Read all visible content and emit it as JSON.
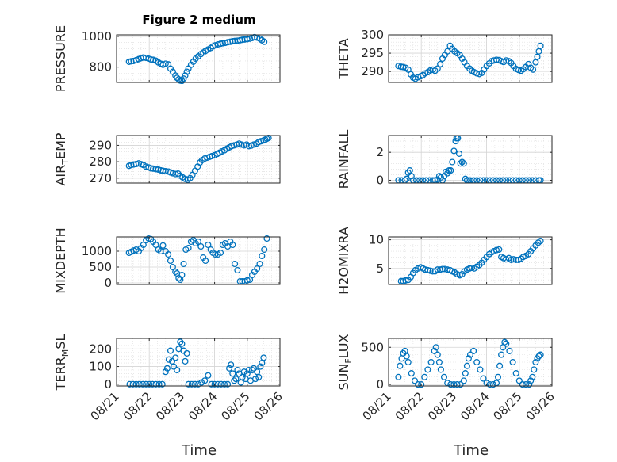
{
  "figure": {
    "title": "Figure 2 medium",
    "xlabel": "Time",
    "marker_color": "#0072BD",
    "axes_color": "#262626",
    "grid_color": "#dcdcdc"
  },
  "chart_data": [
    {
      "type": "scatter",
      "title": "Figure 2 medium",
      "ylabel": "PRESSURE",
      "ylabel_sub": "",
      "ylim": [
        700,
        1010
      ],
      "yticks": [
        800,
        1000
      ],
      "ytick_labels": [
        "800",
        "1000"
      ],
      "xlim": [
        0,
        5
      ],
      "xticks": [
        0,
        1,
        2,
        3,
        4,
        5
      ],
      "xtick_labels": [],
      "grid": true,
      "x": [
        0.38,
        0.45,
        0.52,
        0.6,
        0.68,
        0.75,
        0.82,
        0.9,
        0.98,
        1.05,
        1.12,
        1.2,
        1.28,
        1.35,
        1.42,
        1.5,
        1.58,
        1.65,
        1.72,
        1.8,
        1.85,
        1.9,
        1.95,
        2.0,
        2.05,
        2.1,
        2.15,
        2.2,
        2.28,
        2.35,
        2.42,
        2.5,
        2.58,
        2.65,
        2.72,
        2.8,
        2.88,
        2.95,
        3.02,
        3.1,
        3.18,
        3.25,
        3.32,
        3.4,
        3.48,
        3.55,
        3.62,
        3.7,
        3.78,
        3.85,
        3.92,
        4.0,
        4.08,
        4.15,
        4.22,
        4.3,
        4.38,
        4.45,
        4.52
      ],
      "y": [
        835,
        838,
        840,
        845,
        852,
        858,
        862,
        860,
        855,
        850,
        848,
        842,
        830,
        822,
        815,
        822,
        818,
        790,
        770,
        745,
        730,
        720,
        712,
        710,
        725,
        745,
        770,
        790,
        815,
        835,
        855,
        870,
        885,
        895,
        905,
        915,
        925,
        935,
        942,
        948,
        952,
        955,
        958,
        962,
        965,
        968,
        970,
        972,
        975,
        978,
        980,
        982,
        985,
        990,
        995,
        992,
        985,
        975,
        965
      ]
    },
    {
      "type": "scatter",
      "title": "",
      "ylabel": "THETA",
      "ylabel_sub": "",
      "ylim": [
        287,
        300
      ],
      "yticks": [
        290,
        295,
        300
      ],
      "ytick_labels": [
        "290",
        "295",
        "300"
      ],
      "xlim": [
        0,
        5
      ],
      "xticks": [
        0,
        1,
        2,
        3,
        4,
        5
      ],
      "xtick_labels": [],
      "grid": true,
      "x": [
        0.3,
        0.38,
        0.45,
        0.52,
        0.6,
        0.68,
        0.75,
        0.82,
        0.9,
        0.98,
        1.05,
        1.12,
        1.2,
        1.28,
        1.35,
        1.42,
        1.5,
        1.58,
        1.65,
        1.72,
        1.8,
        1.88,
        1.95,
        2.02,
        2.1,
        2.18,
        2.25,
        2.32,
        2.4,
        2.48,
        2.55,
        2.62,
        2.7,
        2.78,
        2.85,
        2.92,
        3.0,
        3.08,
        3.15,
        3.22,
        3.3,
        3.38,
        3.45,
        3.52,
        3.6,
        3.68,
        3.75,
        3.82,
        3.9,
        3.98,
        4.05,
        4.12,
        4.2,
        4.28,
        4.35,
        4.42,
        4.5,
        4.55,
        4.6,
        4.65
      ],
      "y": [
        291.5,
        291.3,
        291.2,
        291.0,
        290.5,
        289.2,
        288.3,
        288.0,
        288.4,
        288.7,
        289.0,
        289.5,
        289.8,
        290.3,
        290.5,
        290.2,
        290.8,
        292.0,
        293.5,
        294.5,
        295.5,
        297.0,
        296.2,
        295.5,
        295.0,
        294.5,
        293.5,
        292.5,
        291.5,
        290.8,
        290.2,
        289.8,
        289.5,
        289.3,
        289.6,
        290.5,
        291.5,
        292.2,
        292.8,
        293.0,
        293.2,
        293.1,
        292.8,
        292.6,
        293.0,
        292.8,
        292.3,
        291.5,
        290.7,
        290.4,
        290.2,
        290.6,
        291.2,
        292.0,
        291.0,
        290.5,
        292.5,
        294.0,
        295.5,
        297.0
      ]
    },
    {
      "type": "scatter",
      "title": "",
      "ylabel": "AIR",
      "ylabel_sub": "T",
      "ylabel_suffix": "EMP",
      "ylim": [
        267,
        296
      ],
      "yticks": [
        270,
        280,
        290
      ],
      "ytick_labels": [
        "270",
        "280",
        "290"
      ],
      "xlim": [
        0,
        5
      ],
      "xticks": [
        0,
        1,
        2,
        3,
        4,
        5
      ],
      "xtick_labels": [],
      "grid": true,
      "x": [
        0.38,
        0.45,
        0.52,
        0.6,
        0.68,
        0.75,
        0.82,
        0.9,
        0.98,
        1.05,
        1.12,
        1.2,
        1.28,
        1.35,
        1.42,
        1.5,
        1.58,
        1.65,
        1.72,
        1.8,
        1.88,
        1.95,
        2.02,
        2.1,
        2.18,
        2.25,
        2.32,
        2.4,
        2.48,
        2.55,
        2.62,
        2.7,
        2.78,
        2.85,
        2.92,
        3.0,
        3.08,
        3.15,
        3.22,
        3.3,
        3.38,
        3.45,
        3.52,
        3.6,
        3.68,
        3.75,
        3.82,
        3.9,
        3.98,
        4.05,
        4.12,
        4.2,
        4.28,
        4.35,
        4.42,
        4.5,
        4.55,
        4.6,
        4.65
      ],
      "y": [
        277.5,
        278.0,
        278.3,
        278.6,
        279.0,
        278.5,
        278.0,
        277.0,
        276.5,
        276.0,
        275.8,
        275.5,
        275.2,
        274.8,
        274.5,
        274.2,
        274.0,
        273.5,
        273.0,
        272.5,
        272.8,
        271.5,
        270.5,
        269.5,
        269.0,
        270.0,
        272.0,
        274.5,
        277.0,
        279.5,
        281.0,
        282.0,
        282.5,
        283.0,
        283.5,
        284.0,
        284.8,
        285.5,
        286.3,
        287.0,
        288.0,
        288.8,
        289.5,
        290.0,
        290.5,
        291.0,
        290.5,
        290.0,
        290.5,
        289.5,
        289.8,
        290.5,
        291.0,
        292.0,
        292.5,
        293.0,
        293.5,
        294.0,
        294.5
      ]
    },
    {
      "type": "scatter",
      "title": "",
      "ylabel": "RAINFALL",
      "ylabel_sub": "",
      "ylim": [
        -0.2,
        3.2
      ],
      "yticks": [
        0,
        2
      ],
      "ytick_labels": [
        "0",
        "2"
      ],
      "xlim": [
        0,
        5
      ],
      "xticks": [
        0,
        1,
        2,
        3,
        4,
        5
      ],
      "xtick_labels": [],
      "grid": true,
      "x": [
        0.3,
        0.4,
        0.5,
        0.55,
        0.6,
        0.65,
        0.7,
        0.75,
        0.85,
        0.95,
        1.05,
        1.15,
        1.25,
        1.35,
        1.42,
        1.5,
        1.55,
        1.6,
        1.65,
        1.7,
        1.75,
        1.8,
        1.85,
        1.9,
        1.95,
        2.0,
        2.05,
        2.08,
        2.12,
        2.16,
        2.2,
        2.25,
        2.3,
        2.35,
        2.4,
        2.45,
        2.5,
        2.6,
        2.7,
        2.8,
        2.9,
        3.0,
        3.1,
        3.2,
        3.3,
        3.4,
        3.5,
        3.6,
        3.7,
        3.8,
        3.9,
        4.0,
        4.1,
        4.2,
        4.3,
        4.4,
        4.5,
        4.6,
        4.65
      ],
      "y": [
        0,
        0,
        0,
        0.1,
        0.55,
        0.7,
        0.3,
        0,
        0,
        0,
        0,
        0,
        0,
        0,
        0,
        0.05,
        0.3,
        0.2,
        0,
        0.3,
        0.6,
        0.5,
        0.7,
        0.7,
        1.3,
        2.1,
        2.8,
        3.0,
        3.0,
        1.9,
        1.2,
        1.3,
        1.2,
        0.1,
        0,
        0,
        0,
        0,
        0,
        0,
        0,
        0,
        0,
        0,
        0,
        0,
        0,
        0,
        0,
        0,
        0,
        0,
        0,
        0,
        0,
        0,
        0,
        0,
        0
      ]
    },
    {
      "type": "scatter",
      "title": "",
      "ylabel": "MIXDEPTH",
      "ylabel_sub": "",
      "ylim": [
        -50,
        1450
      ],
      "yticks": [
        0,
        500,
        1000
      ],
      "ytick_labels": [
        "0",
        "500",
        "1000"
      ],
      "xlim": [
        0,
        5
      ],
      "xticks": [
        0,
        1,
        2,
        3,
        4,
        5
      ],
      "xtick_labels": [],
      "grid": true,
      "x": [
        0.38,
        0.45,
        0.52,
        0.6,
        0.68,
        0.75,
        0.82,
        0.9,
        0.98,
        1.05,
        1.12,
        1.2,
        1.28,
        1.35,
        1.42,
        1.5,
        1.58,
        1.65,
        1.72,
        1.8,
        1.85,
        1.9,
        1.95,
        2.0,
        2.05,
        2.12,
        2.2,
        2.28,
        2.35,
        2.42,
        2.5,
        2.58,
        2.65,
        2.72,
        2.8,
        2.88,
        2.95,
        3.02,
        3.1,
        3.18,
        3.25,
        3.32,
        3.4,
        3.48,
        3.55,
        3.62,
        3.7,
        3.78,
        3.85,
        3.92,
        4.0,
        4.08,
        4.15,
        4.22,
        4.3,
        4.38,
        4.45,
        4.52,
        4.6
      ],
      "y": [
        950,
        980,
        1020,
        1050,
        1000,
        1100,
        1200,
        1350,
        1400,
        1380,
        1300,
        1200,
        1050,
        1000,
        1180,
        1000,
        900,
        700,
        500,
        350,
        300,
        150,
        100,
        250,
        600,
        1050,
        1100,
        1300,
        1350,
        1250,
        1300,
        1150,
        800,
        700,
        1200,
        1050,
        950,
        900,
        900,
        950,
        1200,
        1250,
        1150,
        1300,
        1200,
        600,
        400,
        50,
        50,
        50,
        80,
        100,
        250,
        350,
        450,
        600,
        850,
        1050,
        1400
      ]
    },
    {
      "type": "scatter",
      "title": "",
      "ylabel": "H2OMIXRA",
      "ylabel_sub": "",
      "ylim": [
        2.2,
        10.5
      ],
      "yticks": [
        5,
        10
      ],
      "ytick_labels": [
        "5",
        "10"
      ],
      "xlim": [
        0,
        5
      ],
      "xticks": [
        0,
        1,
        2,
        3,
        4,
        5
      ],
      "xtick_labels": [],
      "grid": true,
      "x": [
        0.38,
        0.45,
        0.52,
        0.6,
        0.68,
        0.75,
        0.82,
        0.9,
        0.98,
        1.05,
        1.12,
        1.2,
        1.28,
        1.35,
        1.42,
        1.5,
        1.58,
        1.65,
        1.72,
        1.8,
        1.88,
        1.95,
        2.02,
        2.1,
        2.18,
        2.25,
        2.32,
        2.4,
        2.48,
        2.55,
        2.62,
        2.7,
        2.78,
        2.85,
        2.92,
        3.0,
        3.08,
        3.15,
        3.22,
        3.3,
        3.38,
        3.45,
        3.52,
        3.6,
        3.68,
        3.75,
        3.82,
        3.9,
        3.98,
        4.05,
        4.12,
        4.2,
        4.28,
        4.35,
        4.42,
        4.5,
        4.58,
        4.65
      ],
      "y": [
        2.8,
        2.8,
        2.9,
        3.0,
        3.5,
        4.2,
        4.7,
        5.0,
        5.2,
        5.0,
        4.8,
        4.7,
        4.6,
        4.5,
        4.5,
        4.8,
        4.8,
        4.9,
        4.9,
        4.8,
        4.7,
        4.5,
        4.3,
        4.0,
        3.8,
        4.0,
        4.5,
        4.8,
        5.0,
        5.1,
        5.0,
        5.3,
        5.6,
        6.0,
        6.5,
        7.0,
        7.5,
        7.8,
        8.0,
        8.2,
        8.3,
        7.0,
        6.8,
        6.6,
        6.8,
        6.5,
        6.6,
        6.5,
        6.5,
        6.7,
        7.0,
        7.2,
        7.5,
        8.0,
        8.5,
        9.0,
        9.5,
        9.8
      ]
    },
    {
      "type": "scatter",
      "title": "",
      "ylabel": "TERR",
      "ylabel_sub": "M",
      "ylabel_suffix": "SL",
      "ylim": [
        -10,
        260
      ],
      "yticks": [
        0,
        100,
        200
      ],
      "ytick_labels": [
        "0",
        "100",
        "200"
      ],
      "xlim": [
        0,
        5
      ],
      "xticks": [
        0,
        1,
        2,
        3,
        4,
        5
      ],
      "xtick_labels": [
        "08/21",
        "08/22",
        "08/23",
        "08/24",
        "08/25",
        "08/26"
      ],
      "grid": true,
      "x": [
        0.4,
        0.5,
        0.6,
        0.7,
        0.8,
        0.9,
        1.0,
        1.1,
        1.2,
        1.3,
        1.4,
        1.5,
        1.55,
        1.6,
        1.65,
        1.7,
        1.75,
        1.8,
        1.85,
        1.9,
        1.95,
        2.0,
        2.05,
        2.1,
        2.15,
        2.2,
        2.3,
        2.4,
        2.5,
        2.6,
        2.7,
        2.8,
        2.9,
        3.0,
        3.1,
        3.2,
        3.3,
        3.4,
        3.45,
        3.5,
        3.55,
        3.6,
        3.65,
        3.7,
        3.75,
        3.8,
        3.85,
        3.9,
        3.95,
        4.0,
        4.05,
        4.1,
        4.15,
        4.2,
        4.25,
        4.3,
        4.35,
        4.4,
        4.45,
        4.5
      ],
      "y": [
        0,
        0,
        0,
        0,
        0,
        0,
        0,
        0,
        0,
        0,
        0,
        70,
        90,
        140,
        190,
        130,
        100,
        150,
        80,
        200,
        240,
        230,
        190,
        130,
        175,
        0,
        0,
        0,
        0,
        10,
        20,
        50,
        0,
        0,
        0,
        0,
        0,
        0,
        90,
        110,
        60,
        20,
        30,
        80,
        60,
        10,
        40,
        70,
        30,
        60,
        80,
        20,
        80,
        90,
        30,
        70,
        40,
        100,
        120,
        150
      ]
    },
    {
      "type": "scatter",
      "title": "",
      "ylabel": "SUN",
      "ylabel_sub": "F",
      "ylabel_suffix": "LUX",
      "ylim": [
        -20,
        620
      ],
      "yticks": [
        0,
        500
      ],
      "ytick_labels": [
        "0",
        "500"
      ],
      "xlim": [
        0,
        5
      ],
      "xticks": [
        0,
        1,
        2,
        3,
        4,
        5
      ],
      "xtick_labels": [
        "08/21",
        "08/22",
        "08/23",
        "08/24",
        "08/25",
        "08/26"
      ],
      "grid": true,
      "x": [
        0.3,
        0.35,
        0.4,
        0.45,
        0.5,
        0.55,
        0.6,
        0.7,
        0.8,
        0.9,
        1.0,
        1.1,
        1.2,
        1.3,
        1.4,
        1.45,
        1.5,
        1.55,
        1.6,
        1.7,
        1.8,
        1.9,
        2.0,
        2.1,
        2.2,
        2.3,
        2.35,
        2.4,
        2.45,
        2.5,
        2.6,
        2.7,
        2.8,
        2.9,
        3.0,
        3.1,
        3.2,
        3.3,
        3.35,
        3.4,
        3.45,
        3.5,
        3.55,
        3.6,
        3.7,
        3.8,
        3.9,
        4.0,
        4.1,
        4.2,
        4.3,
        4.35,
        4.4,
        4.45,
        4.5,
        4.55,
        4.6,
        4.65
      ],
      "y": [
        100,
        250,
        350,
        420,
        450,
        380,
        300,
        150,
        50,
        0,
        0,
        100,
        200,
        300,
        450,
        500,
        400,
        300,
        200,
        100,
        20,
        0,
        0,
        0,
        0,
        50,
        150,
        250,
        350,
        400,
        450,
        300,
        200,
        80,
        20,
        0,
        0,
        20,
        100,
        250,
        400,
        500,
        570,
        550,
        450,
        300,
        150,
        50,
        0,
        0,
        0,
        50,
        100,
        200,
        300,
        350,
        380,
        400
      ]
    }
  ]
}
